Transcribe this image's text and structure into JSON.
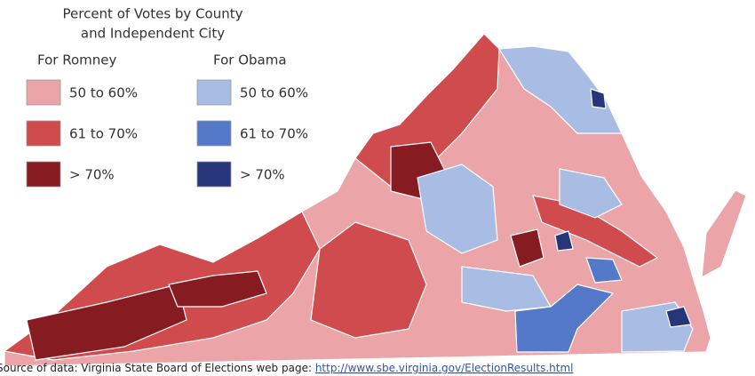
{
  "map": {
    "title_lines": [
      "Percent of Votes by County",
      "and Independent City"
    ],
    "legend": {
      "romney": {
        "heading": "For Romney",
        "items": [
          {
            "label": "50 to 60%",
            "color": "#eba4a8"
          },
          {
            "label": "61 to 70%",
            "color": "#cf4b4d"
          },
          {
            "label": "> 70%",
            "color": "#861c22"
          }
        ]
      },
      "obama": {
        "heading": "For Obama",
        "items": [
          {
            "label": "50 to 60%",
            "color": "#a8bce4"
          },
          {
            "label": "61 to 70%",
            "color": "#5479c9"
          },
          {
            "label": "> 70%",
            "color": "#27357a"
          }
        ]
      }
    },
    "source": {
      "text": "Source of data: Virginia State Board of Elections web page: ",
      "link": "http://www.sbe.virginia.gov/ElectionResults.html"
    }
  }
}
